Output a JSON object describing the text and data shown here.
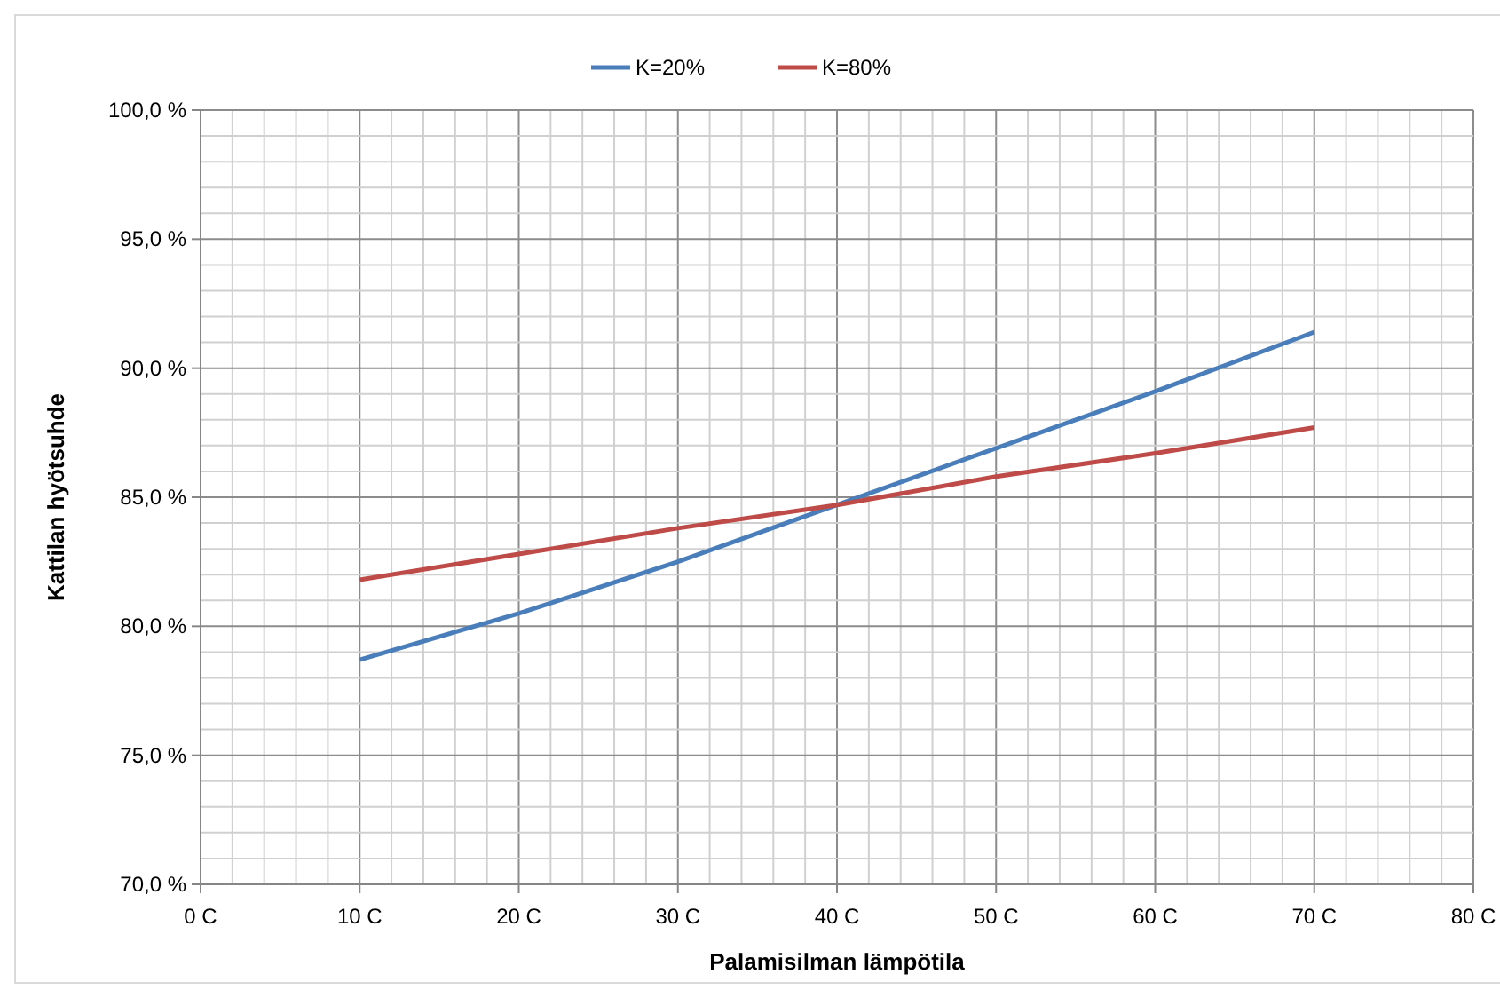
{
  "chart_data": {
    "type": "line",
    "xlabel": "Palamisilman lämpötila",
    "ylabel": "Kattilan hyötsuhde",
    "x": [
      10,
      20,
      30,
      40,
      50,
      60,
      70
    ],
    "series": [
      {
        "name": "K=20%",
        "color": "#4a7ebb",
        "values": [
          78.7,
          80.5,
          82.5,
          84.7,
          86.9,
          89.1,
          91.4
        ]
      },
      {
        "name": "K=80%",
        "color": "#be4b48",
        "values": [
          81.8,
          82.8,
          83.8,
          84.7,
          85.8,
          86.7,
          87.7
        ]
      }
    ],
    "xlim": [
      0,
      80
    ],
    "xticks": [
      {
        "value": 0,
        "label": "0 C"
      },
      {
        "value": 2,
        "label": null
      },
      {
        "value": 4,
        "label": null
      },
      {
        "value": 6,
        "label": null
      },
      {
        "value": 8,
        "label": null
      },
      {
        "value": 10,
        "label": "10 C"
      },
      {
        "value": 12,
        "label": null
      },
      {
        "value": 14,
        "label": null
      },
      {
        "value": 16,
        "label": null
      },
      {
        "value": 18,
        "label": null
      },
      {
        "value": 20,
        "label": "20 C"
      },
      {
        "value": 22,
        "label": null
      },
      {
        "value": 24,
        "label": null
      },
      {
        "value": 26,
        "label": null
      },
      {
        "value": 28,
        "label": null
      },
      {
        "value": 30,
        "label": "30 C"
      },
      {
        "value": 32,
        "label": null
      },
      {
        "value": 34,
        "label": null
      },
      {
        "value": 36,
        "label": null
      },
      {
        "value": 38,
        "label": null
      },
      {
        "value": 40,
        "label": "40 C"
      },
      {
        "value": 42,
        "label": null
      },
      {
        "value": 44,
        "label": null
      },
      {
        "value": 46,
        "label": null
      },
      {
        "value": 48,
        "label": null
      },
      {
        "value": 50,
        "label": "50 C"
      },
      {
        "value": 52,
        "label": null
      },
      {
        "value": 54,
        "label": null
      },
      {
        "value": 56,
        "label": null
      },
      {
        "value": 58,
        "label": null
      },
      {
        "value": 60,
        "label": "60 C"
      },
      {
        "value": 62,
        "label": null
      },
      {
        "value": 64,
        "label": null
      },
      {
        "value": 66,
        "label": null
      },
      {
        "value": 68,
        "label": null
      },
      {
        "value": 70,
        "label": "70 C"
      },
      {
        "value": 72,
        "label": null
      },
      {
        "value": 74,
        "label": null
      },
      {
        "value": 76,
        "label": null
      },
      {
        "value": 78,
        "label": null
      },
      {
        "value": 80,
        "label": "80 C"
      }
    ],
    "ylim": [
      70,
      100
    ],
    "yticks": [
      {
        "value": 70,
        "label": "70,0 %"
      },
      {
        "value": 71,
        "label": null
      },
      {
        "value": 72,
        "label": null
      },
      {
        "value": 73,
        "label": null
      },
      {
        "value": 74,
        "label": null
      },
      {
        "value": 75,
        "label": "75,0 %"
      },
      {
        "value": 76,
        "label": null
      },
      {
        "value": 77,
        "label": null
      },
      {
        "value": 78,
        "label": null
      },
      {
        "value": 79,
        "label": null
      },
      {
        "value": 80,
        "label": "80,0 %"
      },
      {
        "value": 81,
        "label": null
      },
      {
        "value": 82,
        "label": null
      },
      {
        "value": 83,
        "label": null
      },
      {
        "value": 84,
        "label": null
      },
      {
        "value": 85,
        "label": "85,0 %"
      },
      {
        "value": 86,
        "label": null
      },
      {
        "value": 87,
        "label": null
      },
      {
        "value": 88,
        "label": null
      },
      {
        "value": 89,
        "label": null
      },
      {
        "value": 90,
        "label": "90,0 %"
      },
      {
        "value": 91,
        "label": null
      },
      {
        "value": 92,
        "label": null
      },
      {
        "value": 93,
        "label": null
      },
      {
        "value": 94,
        "label": null
      },
      {
        "value": 95,
        "label": "95,0 %"
      },
      {
        "value": 96,
        "label": null
      },
      {
        "value": 97,
        "label": null
      },
      {
        "value": 98,
        "label": null
      },
      {
        "value": 99,
        "label": null
      },
      {
        "value": 100,
        "label": "100,0 %"
      }
    ],
    "grid": true,
    "legend": "top",
    "marker": "none",
    "line_style": "solid"
  }
}
